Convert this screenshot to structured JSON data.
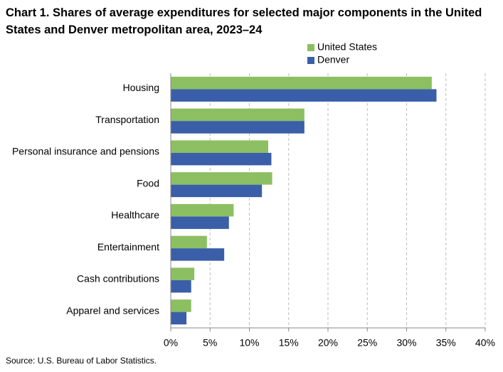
{
  "chart_data": {
    "type": "hbar",
    "title": "Chart 1. Shares of average expenditures for selected major components in the United States and Denver metropolitan area, 2023–24",
    "source": "Source: U.S. Bureau of Labor Statistics.",
    "categories": [
      "Housing",
      "Transportation",
      "Personal insurance and pensions",
      "Food",
      "Healthcare",
      "Entertainment",
      "Cash contributions",
      "Apparel and services"
    ],
    "series": [
      {
        "name": "United States",
        "color": "#8cbf62",
        "values": [
          33.2,
          17.0,
          12.4,
          12.9,
          8.0,
          4.6,
          3.0,
          2.6
        ]
      },
      {
        "name": "Denver",
        "color": "#3a5fa8",
        "values": [
          33.8,
          17.0,
          12.8,
          11.6,
          7.4,
          6.8,
          2.6,
          2.0
        ]
      }
    ],
    "xlim": [
      0,
      40
    ],
    "xticks": [
      {
        "value": 0,
        "label": "0%"
      },
      {
        "value": 5,
        "label": "5%"
      },
      {
        "value": 10,
        "label": "10%"
      },
      {
        "value": 15,
        "label": "15%"
      },
      {
        "value": 20,
        "label": "20%"
      },
      {
        "value": 25,
        "label": "25%"
      },
      {
        "value": 30,
        "label": "30%"
      },
      {
        "value": 35,
        "label": "35%"
      },
      {
        "value": 40,
        "label": "40%"
      }
    ],
    "grid": true,
    "legend": "top-right"
  }
}
